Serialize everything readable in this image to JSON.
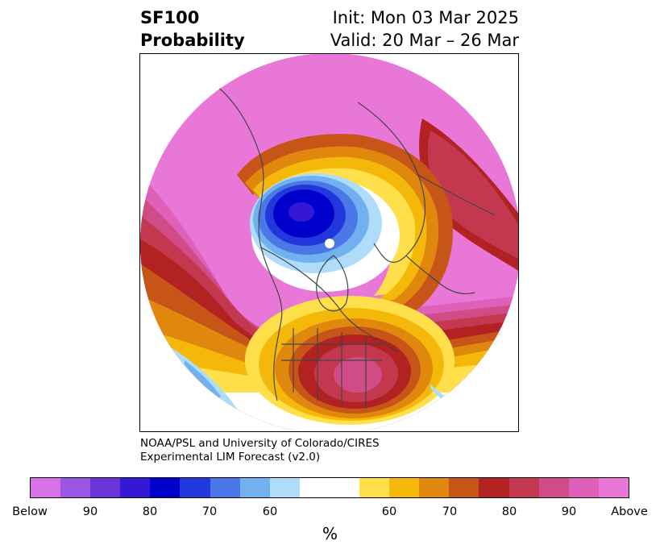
{
  "title": {
    "left_line1": "SF100",
    "left_line2": "Probability",
    "right_line1": "Init: Mon 03 Mar 2025",
    "right_line2": "Valid: 20 Mar – 26 Mar"
  },
  "credit": {
    "line1": "NOAA/PSL and University of Colorado/CIRES",
    "line2": "Experimental LIM Forecast (v2.0)"
  },
  "colorbar": {
    "colors": [
      "#d870e8",
      "#9b55e3",
      "#6a35d8",
      "#3518d6",
      "#0000cc",
      "#2238dc",
      "#4a78e6",
      "#72b0f0",
      "#aedcfa",
      "#ffffff",
      "#ffffff",
      "#ffe04a",
      "#f4b80a",
      "#e0880e",
      "#c85518",
      "#b22222",
      "#c4384f",
      "#d04c86",
      "#de60b8",
      "#e877d8"
    ],
    "ticks": [
      "Below",
      "90",
      "80",
      "70",
      "60",
      "60",
      "70",
      "80",
      "90",
      "Above"
    ],
    "unit": "%"
  },
  "map": {
    "type": "polar stereographic probability map",
    "colors": {
      "above_high": "#e877d8",
      "above_90": "#de60b8",
      "above_85": "#d04c86",
      "above_80": "#c4384f",
      "above_75": "#b22222",
      "above_70": "#c85518",
      "above_65": "#e0880e",
      "above_60": "#f4b80a",
      "above_55": "#ffe04a",
      "below_55": "#aedcfa",
      "below_60": "#72b0f0",
      "below_65": "#4a78e6",
      "below_70": "#2238dc",
      "below_75": "#0000cc",
      "below_80": "#3518d6",
      "coast": "#444444"
    }
  }
}
